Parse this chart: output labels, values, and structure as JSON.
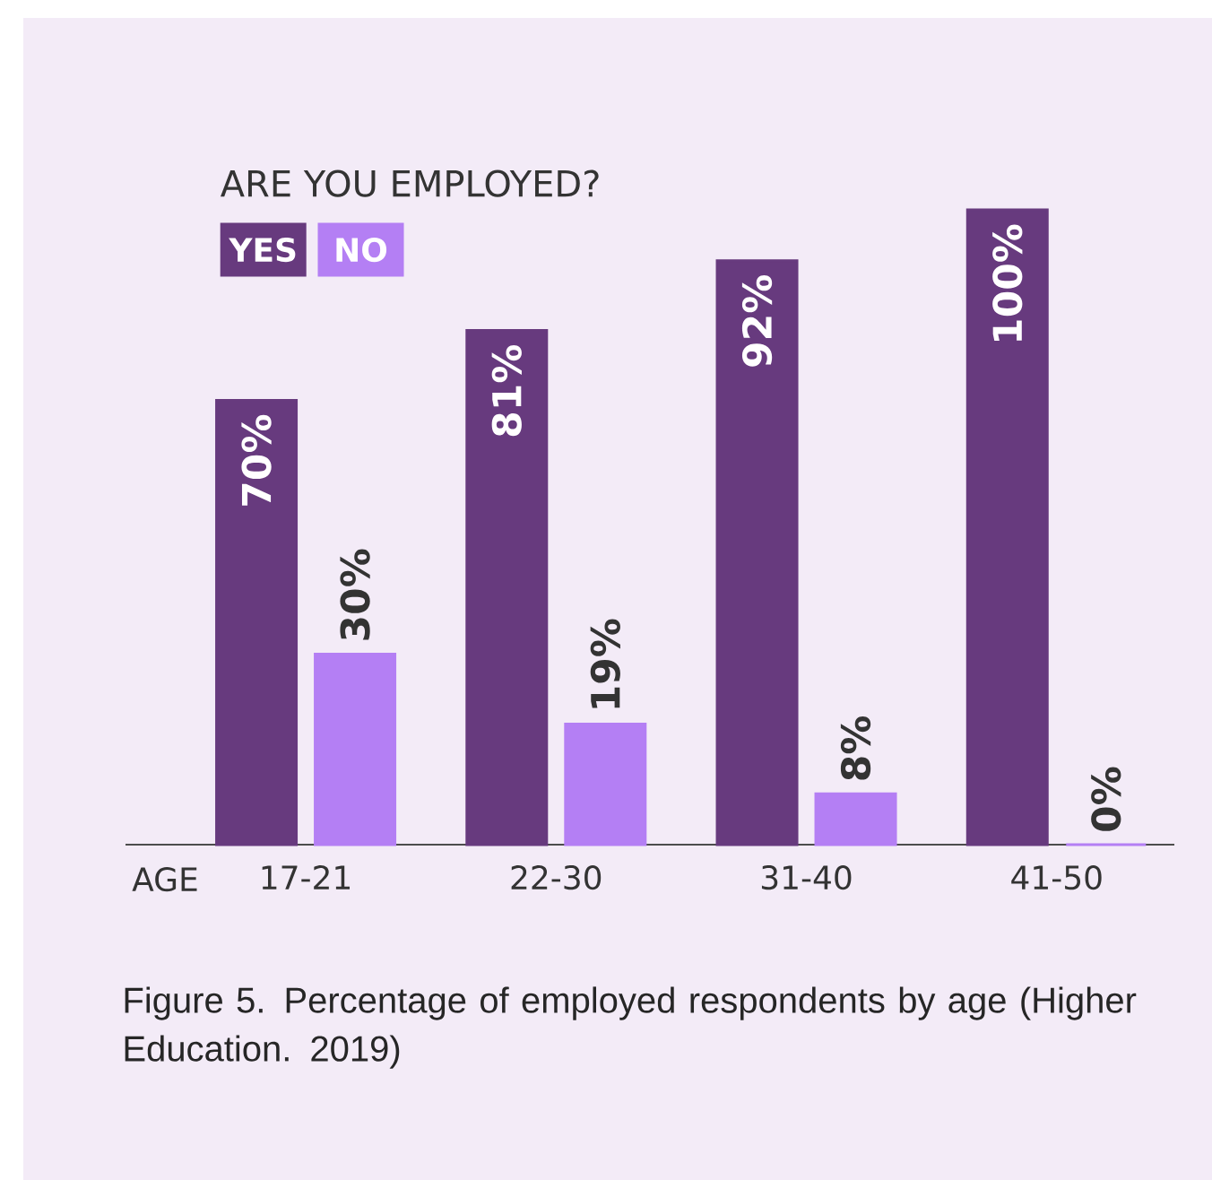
{
  "chart_data": {
    "type": "bar",
    "legend_title": "ARE YOU EMPLOYED?",
    "xlabel": "AGE",
    "categories": [
      "17-21",
      "22-30",
      "31-40",
      "41-50"
    ],
    "series": [
      {
        "name": "YES",
        "color": "#673a7e",
        "values": [
          70,
          81,
          92,
          100
        ],
        "value_labels": [
          "70%",
          "81%",
          "92%",
          "100%"
        ]
      },
      {
        "name": "NO",
        "color": "#b47ff4",
        "values": [
          30,
          19,
          8,
          0
        ],
        "value_labels": [
          "30%",
          "19%",
          "8%",
          "0%"
        ]
      }
    ],
    "ylim": [
      0,
      100
    ],
    "tick_labels": "x",
    "legend": "top left",
    "grid": false,
    "annotations": [
      "Figure 5. Percentage of employed respondents by age (Higher Education. 2019)"
    ]
  }
}
